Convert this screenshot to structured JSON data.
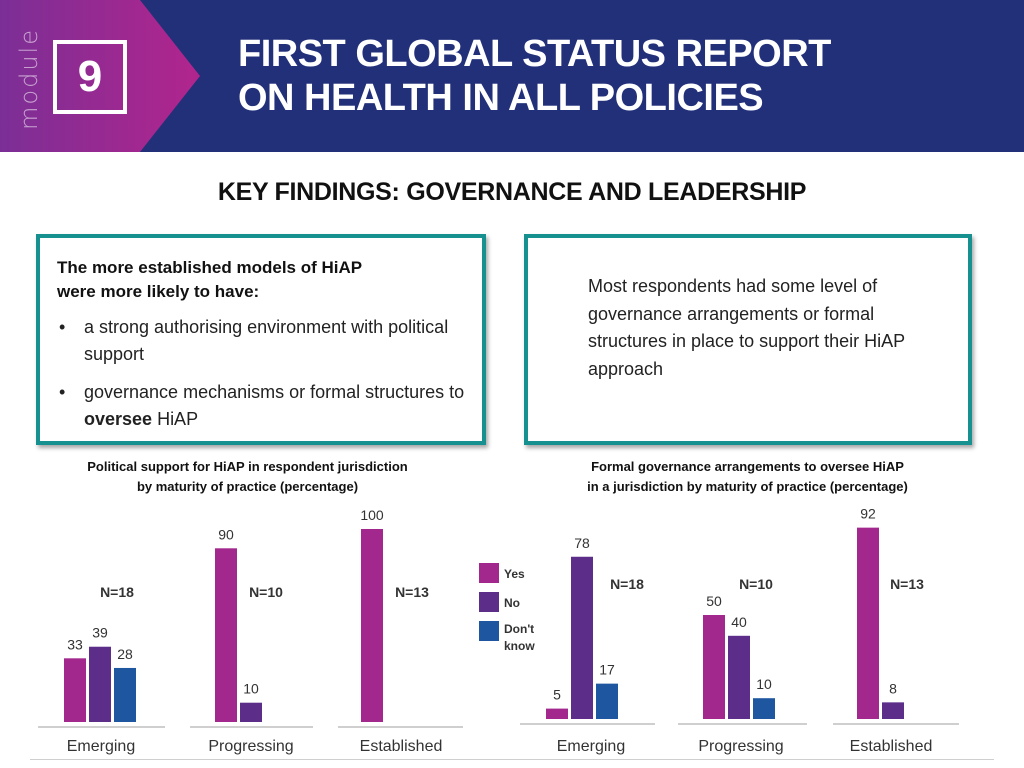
{
  "header": {
    "module_word": "module",
    "module_number": "9",
    "title_line1": "FIRST GLOBAL STATUS REPORT",
    "title_line2": "ON HEALTH IN ALL POLICIES"
  },
  "section_title": "KEY FINDINGS: GOVERNANCE AND LEADERSHIP",
  "left_box": {
    "heading_line1": "The more established models of HiAP",
    "heading_line2": "were more likely to have:",
    "bullet1": "a strong authorising environment with political support",
    "bullet2_before": "governance mechanisms or formal structures to ",
    "bullet2_bold": "oversee",
    "bullet2_after": " HiAP"
  },
  "right_box": {
    "text": "Most respondents had some level of governance arrangements or formal structures in place to support their HiAP approach"
  },
  "colors": {
    "yes": "#a3288e",
    "no": "#5c2e8a",
    "dont_know": "#1e56a0"
  },
  "chart_data": [
    {
      "type": "bar",
      "title_line1": "Political support for HiAP in respondent jurisdiction",
      "title_line2": "by maturity of practice (percentage)",
      "categories": [
        "Emerging",
        "Progressing",
        "Established"
      ],
      "sample_sizes": [
        "N=18",
        "N=10",
        "N=13"
      ],
      "series": [
        {
          "key": "yes",
          "values": [
            33,
            90,
            100
          ]
        },
        {
          "key": "no",
          "values": [
            39,
            10,
            null
          ]
        },
        {
          "key": "dont_know",
          "values": [
            28,
            null,
            null
          ]
        }
      ],
      "ylim": [
        0,
        100
      ]
    },
    {
      "type": "bar",
      "title_line1": "Formal governance arrangements to oversee HiAP",
      "title_line2": "in a jurisdiction by maturity of practice (percentage)",
      "categories": [
        "Emerging",
        "Progressing",
        "Established"
      ],
      "sample_sizes": [
        "N=18",
        "N=10",
        "N=13"
      ],
      "legend": [
        "Yes",
        "No",
        "Don't know"
      ],
      "series": [
        {
          "name": "Yes",
          "key": "yes",
          "values": [
            5,
            50,
            92
          ]
        },
        {
          "name": "No",
          "key": "no",
          "values": [
            78,
            40,
            8
          ]
        },
        {
          "name": "Don't know",
          "key": "dont_know",
          "values": [
            17,
            10,
            null
          ]
        }
      ],
      "ylim": [
        0,
        100
      ]
    }
  ]
}
